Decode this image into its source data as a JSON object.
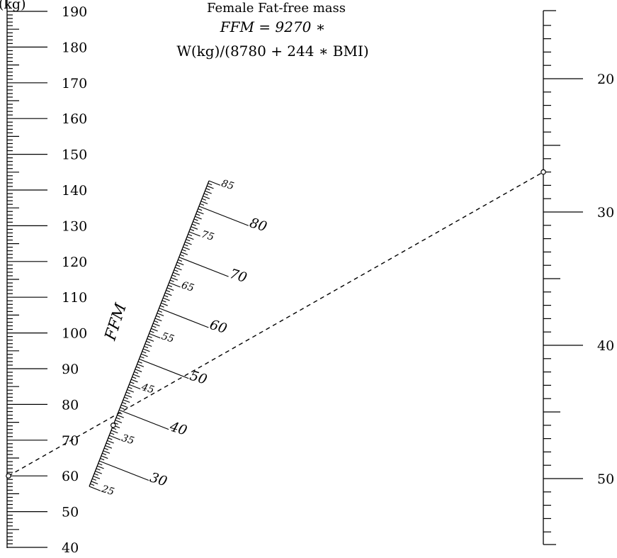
{
  "title": {
    "line1": "Female Fat-free mass",
    "line2": "FFM = 9270 ∗",
    "line3": "W(kg)/(8780 + 244 ∗ BMI)"
  },
  "weight_axis": {
    "label_fragment": "(kg)",
    "ticks": [
      "190",
      "180",
      "170",
      "160",
      "150",
      "140",
      "130",
      "120",
      "110",
      "100",
      "90",
      "80",
      "70",
      "60",
      "50",
      "40"
    ]
  },
  "ffm_axis": {
    "label": "FFM",
    "major_ticks": [
      "80",
      "70",
      "60",
      "50",
      "40",
      "30"
    ],
    "minor_ticks": [
      "85",
      "75",
      "65",
      "55",
      "45",
      "35",
      "25"
    ]
  },
  "bmi_axis": {
    "ticks": [
      "20",
      "30",
      "40",
      "50"
    ]
  },
  "example": {
    "weight": 60,
    "ffm": 37,
    "bmi": 27
  }
}
